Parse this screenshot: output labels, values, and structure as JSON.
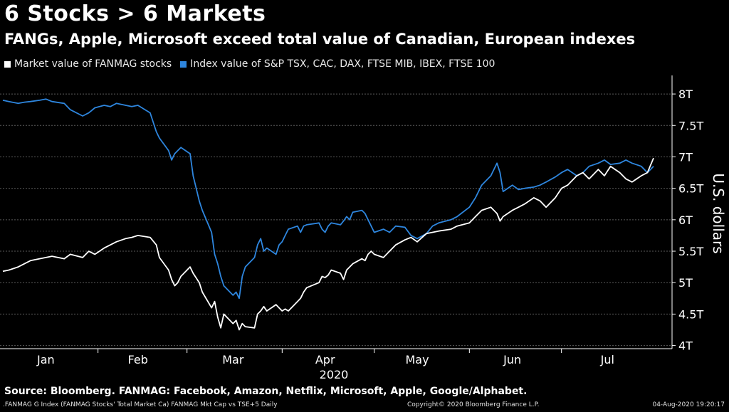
{
  "title": "6 Stocks > 6 Markets",
  "subtitle": "FANGs, Apple, Microsoft exceed total value of Canadian, European indexes",
  "footer": {
    "source": "Source: Bloomberg. FANMAG: Facebook, Amazon, Netflix, Microsoft, Apple, Google/Alphabet.",
    "index_note": ".FANMAG G Index (FANMAG Stocks' Total Market Ca) FANMAG Mkt Cap vs TSE+5  Daily",
    "copyright": "Copyright© 2020 Bloomberg Finance L.P.",
    "timestamp": "04-Aug-2020 19:20:17"
  },
  "chart_data": {
    "type": "line",
    "legend_position": "top-left",
    "grid": true,
    "ylabel": "U.S. dollars",
    "xlabel": "2020",
    "ylim": [
      3.95,
      8.25
    ],
    "y_ticks": [
      4,
      4.5,
      5,
      5.5,
      6,
      6.5,
      7,
      7.5,
      8
    ],
    "y_tick_labels": [
      "4T",
      "4.5T",
      "5T",
      "5.5T",
      "6T",
      "6.5T",
      "7T",
      "7.5T",
      "8T"
    ],
    "x_range": [
      "2020-01-01",
      "2020-07-31"
    ],
    "x_ticks": [
      "2020-01-15",
      "2020-02-14",
      "2020-03-16",
      "2020-04-15",
      "2020-05-15",
      "2020-06-15",
      "2020-07-16"
    ],
    "x_tick_labels": [
      "Jan",
      "Feb",
      "Mar",
      "Apr",
      "May",
      "Jun",
      "Jul"
    ],
    "colors": {
      "fanmag": "#ffffff",
      "index": "#2e86de",
      "grid": "#5a5a5a",
      "axis": "#ffffff"
    },
    "series": [
      {
        "name": "Market value of FANMAG stocks",
        "color": "#ffffff",
        "x": [
          "2020-01-01",
          "2020-01-03",
          "2020-01-06",
          "2020-01-08",
          "2020-01-10",
          "2020-01-13",
          "2020-01-15",
          "2020-01-17",
          "2020-01-21",
          "2020-01-23",
          "2020-01-27",
          "2020-01-29",
          "2020-01-31",
          "2020-02-03",
          "2020-02-05",
          "2020-02-07",
          "2020-02-10",
          "2020-02-12",
          "2020-02-14",
          "2020-02-18",
          "2020-02-20",
          "2020-02-21",
          "2020-02-24",
          "2020-02-25",
          "2020-02-26",
          "2020-02-27",
          "2020-02-28",
          "2020-03-02",
          "2020-03-03",
          "2020-03-05",
          "2020-03-06",
          "2020-03-09",
          "2020-03-10",
          "2020-03-11",
          "2020-03-12",
          "2020-03-13",
          "2020-03-16",
          "2020-03-17",
          "2020-03-18",
          "2020-03-19",
          "2020-03-20",
          "2020-03-23",
          "2020-03-24",
          "2020-03-25",
          "2020-03-26",
          "2020-03-27",
          "2020-03-30",
          "2020-03-31",
          "2020-04-01",
          "2020-04-02",
          "2020-04-03",
          "2020-04-06",
          "2020-04-07",
          "2020-04-08",
          "2020-04-09",
          "2020-04-13",
          "2020-04-14",
          "2020-04-15",
          "2020-04-16",
          "2020-04-17",
          "2020-04-20",
          "2020-04-21",
          "2020-04-22",
          "2020-04-23",
          "2020-04-24",
          "2020-04-27",
          "2020-04-28",
          "2020-04-29",
          "2020-04-30",
          "2020-05-01",
          "2020-05-04",
          "2020-05-06",
          "2020-05-08",
          "2020-05-11",
          "2020-05-13",
          "2020-05-15",
          "2020-05-18",
          "2020-05-20",
          "2020-05-22",
          "2020-05-26",
          "2020-05-28",
          "2020-06-01",
          "2020-06-03",
          "2020-06-05",
          "2020-06-08",
          "2020-06-10",
          "2020-06-11",
          "2020-06-12",
          "2020-06-15",
          "2020-06-17",
          "2020-06-19",
          "2020-06-22",
          "2020-06-24",
          "2020-06-26",
          "2020-06-29",
          "2020-07-01",
          "2020-07-03",
          "2020-07-06",
          "2020-07-08",
          "2020-07-10",
          "2020-07-13",
          "2020-07-15",
          "2020-07-17",
          "2020-07-20",
          "2020-07-22",
          "2020-07-24",
          "2020-07-27",
          "2020-07-29",
          "2020-07-31"
        ],
        "values": [
          5.18,
          5.2,
          5.25,
          5.3,
          5.35,
          5.38,
          5.4,
          5.42,
          5.38,
          5.45,
          5.4,
          5.5,
          5.45,
          5.55,
          5.6,
          5.65,
          5.7,
          5.72,
          5.75,
          5.72,
          5.6,
          5.4,
          5.2,
          5.05,
          4.95,
          5.0,
          5.1,
          5.25,
          5.15,
          5.0,
          4.85,
          4.6,
          4.7,
          4.45,
          4.28,
          4.5,
          4.35,
          4.4,
          4.25,
          4.35,
          4.3,
          4.28,
          4.5,
          4.55,
          4.62,
          4.55,
          4.65,
          4.6,
          4.55,
          4.58,
          4.55,
          4.7,
          4.75,
          4.85,
          4.92,
          5.0,
          5.1,
          5.08,
          5.12,
          5.2,
          5.15,
          5.05,
          5.2,
          5.25,
          5.3,
          5.38,
          5.35,
          5.45,
          5.5,
          5.45,
          5.4,
          5.5,
          5.6,
          5.68,
          5.72,
          5.65,
          5.78,
          5.8,
          5.82,
          5.85,
          5.9,
          5.95,
          6.05,
          6.15,
          6.2,
          6.1,
          5.98,
          6.05,
          6.15,
          6.2,
          6.25,
          6.35,
          6.3,
          6.2,
          6.35,
          6.5,
          6.55,
          6.7,
          6.75,
          6.65,
          6.8,
          6.7,
          6.85,
          6.75,
          6.65,
          6.6,
          6.7,
          6.75,
          6.98
        ]
      },
      {
        "name": "Index value of S&P TSX, CAC, DAX, FTSE MIB, IBEX, FTSE 100",
        "color": "#2e86de",
        "x": [
          "2020-01-01",
          "2020-01-03",
          "2020-01-06",
          "2020-01-08",
          "2020-01-10",
          "2020-01-13",
          "2020-01-15",
          "2020-01-17",
          "2020-01-21",
          "2020-01-23",
          "2020-01-27",
          "2020-01-29",
          "2020-01-31",
          "2020-02-03",
          "2020-02-05",
          "2020-02-07",
          "2020-02-10",
          "2020-02-12",
          "2020-02-14",
          "2020-02-18",
          "2020-02-20",
          "2020-02-21",
          "2020-02-24",
          "2020-02-25",
          "2020-02-26",
          "2020-02-27",
          "2020-02-28",
          "2020-03-02",
          "2020-03-03",
          "2020-03-05",
          "2020-03-06",
          "2020-03-09",
          "2020-03-10",
          "2020-03-11",
          "2020-03-12",
          "2020-03-13",
          "2020-03-16",
          "2020-03-17",
          "2020-03-18",
          "2020-03-19",
          "2020-03-20",
          "2020-03-23",
          "2020-03-24",
          "2020-03-25",
          "2020-03-26",
          "2020-03-27",
          "2020-03-30",
          "2020-03-31",
          "2020-04-01",
          "2020-04-02",
          "2020-04-03",
          "2020-04-06",
          "2020-04-07",
          "2020-04-08",
          "2020-04-09",
          "2020-04-13",
          "2020-04-14",
          "2020-04-15",
          "2020-04-16",
          "2020-04-17",
          "2020-04-20",
          "2020-04-21",
          "2020-04-22",
          "2020-04-23",
          "2020-04-24",
          "2020-04-27",
          "2020-04-28",
          "2020-04-29",
          "2020-04-30",
          "2020-05-01",
          "2020-05-04",
          "2020-05-06",
          "2020-05-08",
          "2020-05-11",
          "2020-05-13",
          "2020-05-15",
          "2020-05-18",
          "2020-05-20",
          "2020-05-22",
          "2020-05-26",
          "2020-05-28",
          "2020-06-01",
          "2020-06-03",
          "2020-06-05",
          "2020-06-08",
          "2020-06-10",
          "2020-06-11",
          "2020-06-12",
          "2020-06-15",
          "2020-06-17",
          "2020-06-19",
          "2020-06-22",
          "2020-06-24",
          "2020-06-26",
          "2020-06-29",
          "2020-07-01",
          "2020-07-03",
          "2020-07-06",
          "2020-07-08",
          "2020-07-10",
          "2020-07-13",
          "2020-07-15",
          "2020-07-17",
          "2020-07-20",
          "2020-07-22",
          "2020-07-24",
          "2020-07-27",
          "2020-07-29",
          "2020-07-31"
        ],
        "values": [
          7.9,
          7.88,
          7.85,
          7.87,
          7.88,
          7.9,
          7.92,
          7.88,
          7.85,
          7.75,
          7.65,
          7.7,
          7.78,
          7.82,
          7.8,
          7.85,
          7.82,
          7.8,
          7.82,
          7.7,
          7.4,
          7.3,
          7.1,
          6.95,
          7.05,
          7.1,
          7.15,
          7.05,
          6.7,
          6.3,
          6.15,
          5.8,
          5.45,
          5.3,
          5.1,
          4.95,
          4.8,
          4.85,
          4.75,
          5.1,
          5.25,
          5.4,
          5.6,
          5.7,
          5.5,
          5.55,
          5.45,
          5.6,
          5.65,
          5.75,
          5.85,
          5.9,
          5.8,
          5.9,
          5.92,
          5.95,
          5.85,
          5.8,
          5.9,
          5.95,
          5.92,
          5.98,
          6.05,
          6.0,
          6.12,
          6.15,
          6.1,
          6.0,
          5.9,
          5.8,
          5.85,
          5.8,
          5.9,
          5.88,
          5.75,
          5.7,
          5.78,
          5.9,
          5.95,
          6.0,
          6.05,
          6.2,
          6.35,
          6.55,
          6.7,
          6.9,
          6.75,
          6.45,
          6.55,
          6.48,
          6.5,
          6.52,
          6.55,
          6.6,
          6.68,
          6.75,
          6.8,
          6.7,
          6.75,
          6.85,
          6.9,
          6.95,
          6.88,
          6.9,
          6.95,
          6.9,
          6.85,
          6.75,
          6.85
        ]
      }
    ]
  }
}
